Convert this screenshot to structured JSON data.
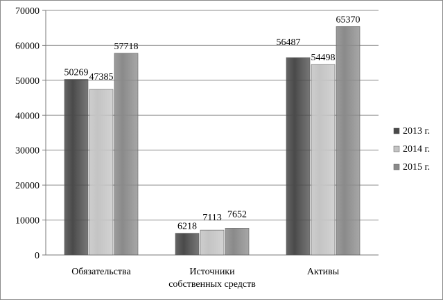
{
  "chart_data": {
    "type": "bar",
    "categories": [
      [
        "Обязательства"
      ],
      [
        "Источники",
        "собственных средств"
      ],
      [
        "Активы"
      ]
    ],
    "series": [
      {
        "name": "2013 г.",
        "values": [
          50269,
          6218,
          56487
        ],
        "color": "#4a4a4a"
      },
      {
        "name": "2014 г.",
        "values": [
          47385,
          7113,
          54498
        ],
        "color": "#c4c4c4"
      },
      {
        "name": "2015 г.",
        "values": [
          57718,
          7652,
          65370
        ],
        "color": "#8a8a8a"
      }
    ],
    "ylim": [
      0,
      70000
    ],
    "yticks": [
      0,
      10000,
      20000,
      30000,
      40000,
      50000,
      60000,
      70000
    ],
    "grid": true,
    "legend": "right"
  }
}
